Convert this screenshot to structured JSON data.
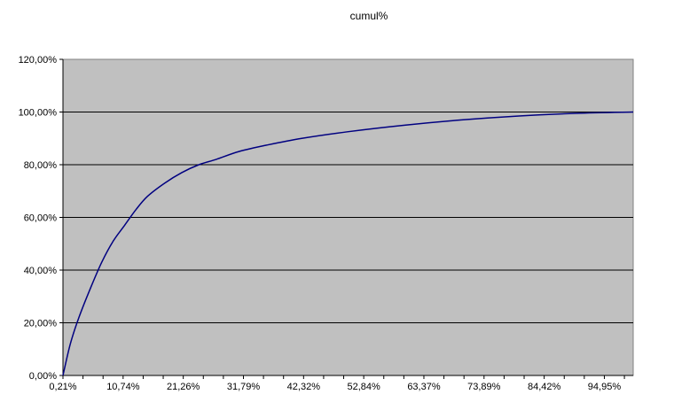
{
  "chart_data": {
    "type": "line",
    "title": "cumul%",
    "xlabel": "",
    "ylabel": "",
    "ylim": [
      0,
      120
    ],
    "y_ticks": [
      "0,00%",
      "20,00%",
      "40,00%",
      "60,00%",
      "80,00%",
      "100,00%",
      "120,00%"
    ],
    "y_tick_values": [
      0,
      20,
      40,
      60,
      80,
      100,
      120
    ],
    "x_range": [
      0.21,
      100
    ],
    "x_ticks": [
      "0,21%",
      "10,74%",
      "21,26%",
      "31,79%",
      "42,32%",
      "52,84%",
      "63,37%",
      "73,89%",
      "84,42%",
      "94,95%"
    ],
    "x_tick_values": [
      0.21,
      10.74,
      21.26,
      31.79,
      42.32,
      52.84,
      63.37,
      73.89,
      84.42,
      94.95
    ],
    "grid": true,
    "legend": "none",
    "series": [
      {
        "color": "#000080",
        "x": [
          0.21,
          1.5,
          3,
          5,
          7,
          9,
          11,
          13,
          15,
          18,
          21,
          24,
          27,
          31,
          36,
          42,
          50,
          60,
          70,
          80,
          90,
          100
        ],
        "values": [
          0,
          12,
          22,
          33,
          43,
          51,
          57,
          63,
          68,
          73,
          77,
          80,
          82,
          85,
          87.5,
          90,
          92.5,
          95,
          97,
          98.5,
          99.5,
          100
        ]
      }
    ],
    "colors": {
      "plot_bg": "#c0c0c0",
      "grid": "#000000",
      "line": "#000080"
    }
  }
}
